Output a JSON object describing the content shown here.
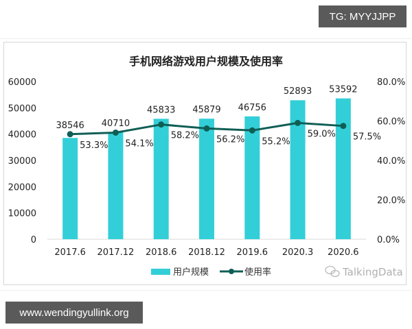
{
  "overlays": {
    "tg_label": "TG: MYYJJPP",
    "url_label": "www.wendingyullink.org"
  },
  "colors": {
    "bar": "#33cfd8",
    "line": "#0f5e55",
    "text": "#222222",
    "axis": "#d9d9d9",
    "watermark": "#b0b0b0"
  },
  "watermark": {
    "icon": "wechat-icon",
    "text": "TalkingData"
  },
  "chart_data": {
    "type": "bar+line",
    "title": "手机网络游戏用户规模及使用率",
    "categories": [
      "2017.6",
      "2017.12",
      "2018.6",
      "2018.12",
      "2019.6",
      "2020.3",
      "2020.6"
    ],
    "series": [
      {
        "name": "用户规模",
        "type": "bar",
        "axis": "left",
        "values": [
          38546,
          40710,
          45833,
          45879,
          46756,
          52893,
          53592
        ],
        "labels": [
          "38546",
          "40710",
          "45833",
          "45879",
          "46756",
          "52893",
          "53592"
        ]
      },
      {
        "name": "使用率",
        "type": "line",
        "axis": "right",
        "values": [
          53.3,
          54.1,
          58.2,
          56.2,
          55.2,
          59.0,
          57.5
        ],
        "labels": [
          "53.3%",
          "54.1%",
          "58.2%",
          "56.2%",
          "55.2%",
          "59.0%",
          "57.5%"
        ]
      }
    ],
    "left_axis": {
      "ylim": [
        0,
        60000
      ],
      "ticks": [
        "0",
        "10000",
        "20000",
        "30000",
        "40000",
        "50000",
        "60000"
      ]
    },
    "right_axis": {
      "ylim": [
        0,
        80
      ],
      "ticks": [
        "0.0%",
        "20.0%",
        "40.0%",
        "60.0%",
        "80.0%"
      ]
    },
    "xlabel": "",
    "ylabel": "",
    "grid": false,
    "legend": {
      "position": "bottom",
      "entries": [
        "用户规模",
        "使用率"
      ]
    },
    "source": "TalkingData"
  }
}
